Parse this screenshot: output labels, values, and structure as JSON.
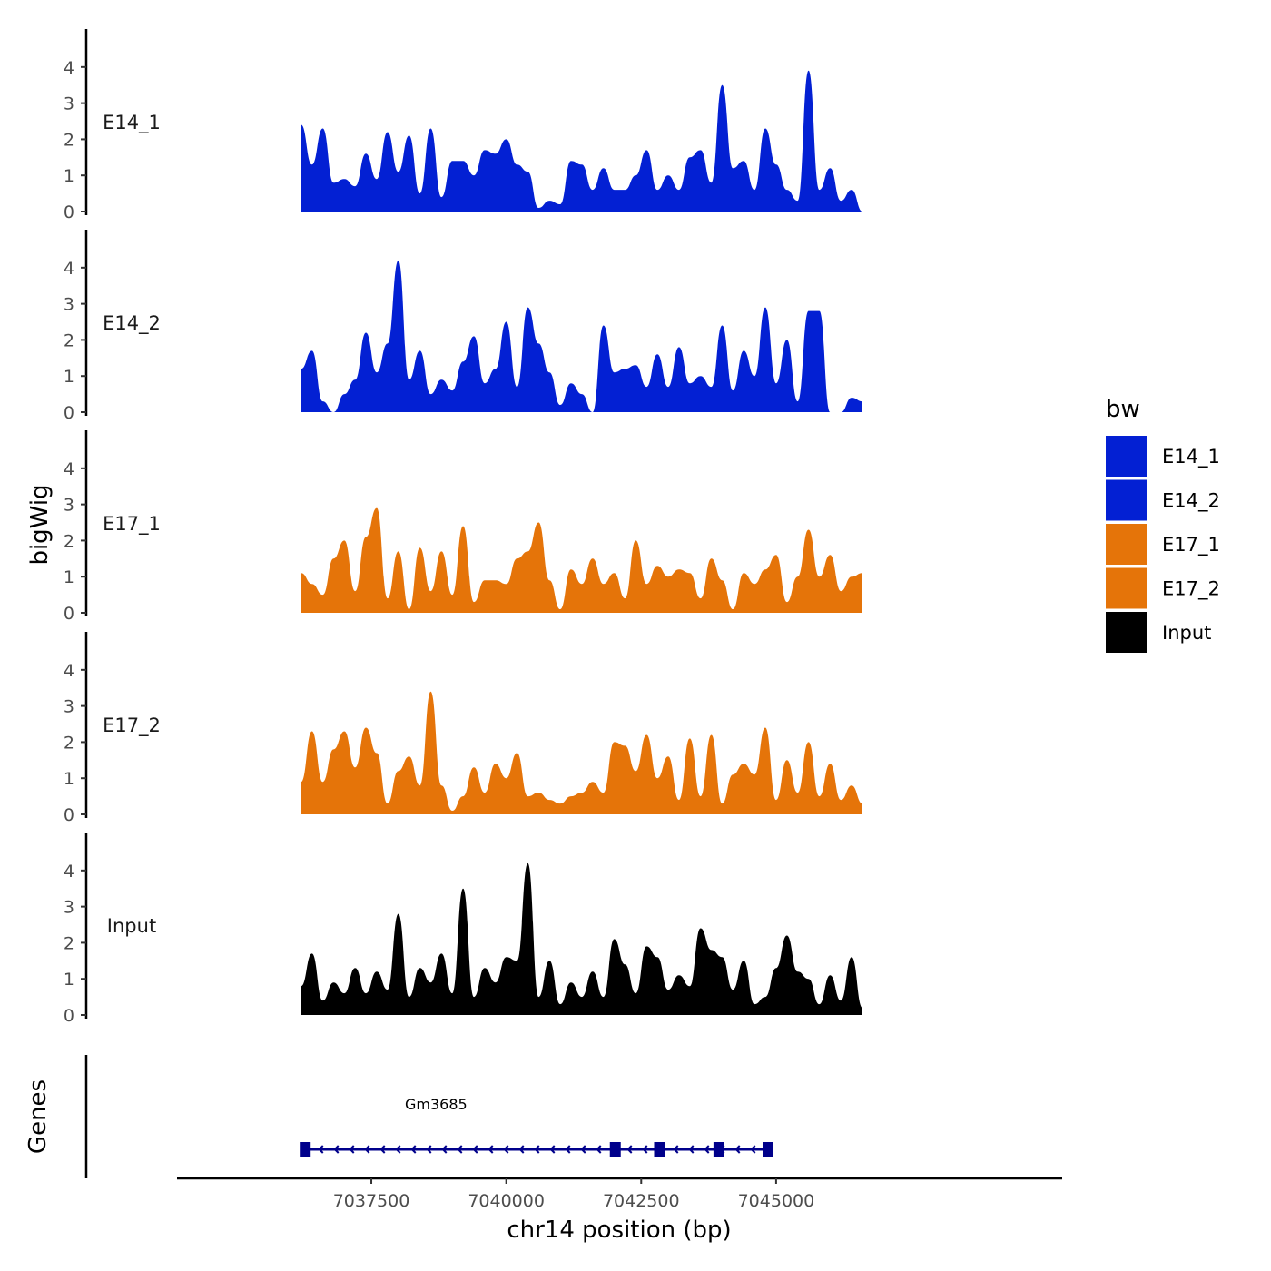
{
  "chart_data": {
    "type": "area",
    "region": {
      "chromosome": "chr14",
      "start": 7036200,
      "end": 7046600
    },
    "x": {
      "label": "chr14 position (bp)",
      "ticks": [
        7037500,
        7040000,
        7042500,
        7045000
      ],
      "tick_labels": [
        "7037500",
        "7040000",
        "7042500",
        "7045000"
      ],
      "range": [
        7033900,
        7050300
      ]
    },
    "y": {
      "label": "bigWig",
      "range": [
        0,
        4.8
      ],
      "ticks": [
        0,
        1,
        2,
        3,
        4
      ],
      "tick_labels": [
        "0",
        "1",
        "2",
        "3",
        "4"
      ]
    },
    "genes_axis_label": "Genes",
    "legend": {
      "title": "bw",
      "position": "right",
      "entries": [
        {
          "label": "E14_1",
          "color": "#0320d3"
        },
        {
          "label": "E14_2",
          "color": "#0320d3"
        },
        {
          "label": "E17_1",
          "color": "#e57409"
        },
        {
          "label": "E17_2",
          "color": "#e57409"
        },
        {
          "label": "Input",
          "color": "#000000"
        }
      ]
    },
    "series": [
      {
        "name": "E14_1",
        "color": "#0320d3",
        "positions": [
          7036200,
          7036400,
          7036600,
          7036800,
          7037000,
          7037200,
          7037400,
          7037600,
          7037800,
          7038000,
          7038200,
          7038400,
          7038600,
          7038800,
          7039000,
          7039200,
          7039400,
          7039600,
          7039800,
          7040000,
          7040200,
          7040400,
          7040600,
          7040800,
          7041000,
          7041200,
          7041400,
          7041600,
          7041800,
          7042000,
          7042200,
          7042400,
          7042600,
          7042800,
          7043000,
          7043200,
          7043400,
          7043600,
          7043800,
          7044000,
          7044200,
          7044400,
          7044600,
          7044800,
          7045000,
          7045200,
          7045400,
          7045600,
          7045800,
          7046000,
          7046200,
          7046400,
          7046600
        ],
        "values": [
          2.4,
          1.3,
          2.3,
          0.8,
          0.9,
          0.7,
          1.6,
          0.9,
          2.2,
          1.1,
          2.1,
          0.5,
          2.3,
          0.4,
          1.4,
          1.4,
          1.0,
          1.7,
          1.6,
          2.0,
          1.3,
          1.1,
          0.1,
          0.3,
          0.2,
          1.4,
          1.3,
          0.6,
          1.2,
          0.6,
          0.6,
          1.0,
          1.7,
          0.6,
          1.0,
          0.6,
          1.5,
          1.7,
          0.8,
          3.5,
          1.2,
          1.4,
          0.6,
          2.3,
          1.3,
          0.6,
          0.3,
          3.9,
          0.6,
          1.2,
          0.3,
          0.6,
          0.0
        ]
      },
      {
        "name": "E14_2",
        "color": "#0320d3",
        "positions": [
          7036200,
          7036400,
          7036600,
          7036800,
          7037000,
          7037200,
          7037400,
          7037600,
          7037800,
          7038000,
          7038200,
          7038400,
          7038600,
          7038800,
          7039000,
          7039200,
          7039400,
          7039600,
          7039800,
          7040000,
          7040200,
          7040400,
          7040600,
          7040800,
          7041000,
          7041200,
          7041400,
          7041600,
          7041800,
          7042000,
          7042200,
          7042400,
          7042600,
          7042800,
          7043000,
          7043200,
          7043400,
          7043600,
          7043800,
          7044000,
          7044200,
          7044400,
          7044600,
          7044800,
          7045000,
          7045200,
          7045400,
          7045600,
          7045800,
          7046000,
          7046200,
          7046400,
          7046600
        ],
        "values": [
          1.2,
          1.7,
          0.3,
          0.0,
          0.5,
          0.9,
          2.2,
          1.1,
          1.9,
          4.2,
          0.9,
          1.7,
          0.5,
          0.9,
          0.6,
          1.4,
          2.1,
          0.8,
          1.2,
          2.5,
          0.7,
          2.9,
          1.9,
          1.1,
          0.2,
          0.8,
          0.5,
          0.0,
          2.4,
          1.1,
          1.2,
          1.3,
          0.7,
          1.6,
          0.7,
          1.8,
          0.8,
          1.0,
          0.7,
          2.4,
          0.6,
          1.7,
          1.0,
          2.9,
          0.8,
          2.0,
          0.3,
          2.8,
          2.8,
          0.0,
          0.0,
          0.4,
          0.3
        ]
      },
      {
        "name": "E17_1",
        "color": "#e57409",
        "positions": [
          7036200,
          7036400,
          7036600,
          7036800,
          7037000,
          7037200,
          7037400,
          7037600,
          7037800,
          7038000,
          7038200,
          7038400,
          7038600,
          7038800,
          7039000,
          7039200,
          7039400,
          7039600,
          7039800,
          7040000,
          7040200,
          7040400,
          7040600,
          7040800,
          7041000,
          7041200,
          7041400,
          7041600,
          7041800,
          7042000,
          7042200,
          7042400,
          7042600,
          7042800,
          7043000,
          7043200,
          7043400,
          7043600,
          7043800,
          7044000,
          7044200,
          7044400,
          7044600,
          7044800,
          7045000,
          7045200,
          7045400,
          7045600,
          7045800,
          7046000,
          7046200,
          7046400,
          7046600
        ],
        "values": [
          1.1,
          0.8,
          0.5,
          1.5,
          2.0,
          0.6,
          2.1,
          2.9,
          0.4,
          1.7,
          0.1,
          1.8,
          0.6,
          1.7,
          0.5,
          2.4,
          0.3,
          0.9,
          0.9,
          0.8,
          1.5,
          1.7,
          2.5,
          0.9,
          0.1,
          1.2,
          0.8,
          1.5,
          0.8,
          1.1,
          0.4,
          2.0,
          0.8,
          1.3,
          1.0,
          1.2,
          1.1,
          0.4,
          1.5,
          0.9,
          0.1,
          1.1,
          0.8,
          1.2,
          1.6,
          0.3,
          1.0,
          2.3,
          1.0,
          1.6,
          0.6,
          1.0,
          1.1
        ]
      },
      {
        "name": "E17_2",
        "color": "#e57409",
        "positions": [
          7036200,
          7036400,
          7036600,
          7036800,
          7037000,
          7037200,
          7037400,
          7037600,
          7037800,
          7038000,
          7038200,
          7038400,
          7038600,
          7038800,
          7039000,
          7039200,
          7039400,
          7039600,
          7039800,
          7040000,
          7040200,
          7040400,
          7040600,
          7040800,
          7041000,
          7041200,
          7041400,
          7041600,
          7041800,
          7042000,
          7042200,
          7042400,
          7042600,
          7042800,
          7043000,
          7043200,
          7043400,
          7043600,
          7043800,
          7044000,
          7044200,
          7044400,
          7044600,
          7044800,
          7045000,
          7045200,
          7045400,
          7045600,
          7045800,
          7046000,
          7046200,
          7046400,
          7046600
        ],
        "values": [
          0.9,
          2.3,
          0.9,
          1.8,
          2.3,
          1.3,
          2.4,
          1.7,
          0.3,
          1.2,
          1.6,
          0.8,
          3.4,
          0.8,
          0.1,
          0.5,
          1.3,
          0.6,
          1.4,
          1.0,
          1.7,
          0.5,
          0.6,
          0.4,
          0.3,
          0.5,
          0.6,
          0.9,
          0.6,
          2.0,
          1.9,
          1.2,
          2.2,
          1.0,
          1.6,
          0.4,
          2.1,
          0.5,
          2.2,
          0.3,
          1.1,
          1.4,
          1.1,
          2.4,
          0.4,
          1.5,
          0.6,
          2.0,
          0.5,
          1.4,
          0.4,
          0.8,
          0.3
        ]
      },
      {
        "name": "Input",
        "color": "#000000",
        "positions": [
          7036200,
          7036400,
          7036600,
          7036800,
          7037000,
          7037200,
          7037400,
          7037600,
          7037800,
          7038000,
          7038200,
          7038400,
          7038600,
          7038800,
          7039000,
          7039200,
          7039400,
          7039600,
          7039800,
          7040000,
          7040200,
          7040400,
          7040600,
          7040800,
          7041000,
          7041200,
          7041400,
          7041600,
          7041800,
          7042000,
          7042200,
          7042400,
          7042600,
          7042800,
          7043000,
          7043200,
          7043400,
          7043600,
          7043800,
          7044000,
          7044200,
          7044400,
          7044600,
          7044800,
          7045000,
          7045200,
          7045400,
          7045600,
          7045800,
          7046000,
          7046200,
          7046400,
          7046600
        ],
        "values": [
          0.8,
          1.7,
          0.4,
          0.9,
          0.6,
          1.3,
          0.6,
          1.2,
          0.7,
          2.8,
          0.5,
          1.3,
          0.9,
          1.7,
          0.6,
          3.5,
          0.5,
          1.3,
          0.9,
          1.6,
          1.5,
          4.2,
          0.5,
          1.5,
          0.3,
          0.9,
          0.5,
          1.2,
          0.5,
          2.1,
          1.4,
          0.6,
          1.9,
          1.6,
          0.7,
          1.1,
          0.8,
          2.4,
          1.8,
          1.6,
          0.7,
          1.5,
          0.3,
          0.5,
          1.3,
          2.2,
          1.2,
          1.0,
          0.3,
          1.1,
          0.4,
          1.6,
          0.2
        ]
      }
    ],
    "genes": [
      {
        "name": "Gm3685",
        "strand": "-",
        "start": 7036200,
        "end": 7044900,
        "exons": [
          [
            7036200,
            7036350
          ],
          [
            7041980,
            7042060
          ],
          [
            7042810,
            7042870
          ],
          [
            7043900,
            7043980
          ],
          [
            7044800,
            7044900
          ]
        ]
      }
    ]
  }
}
